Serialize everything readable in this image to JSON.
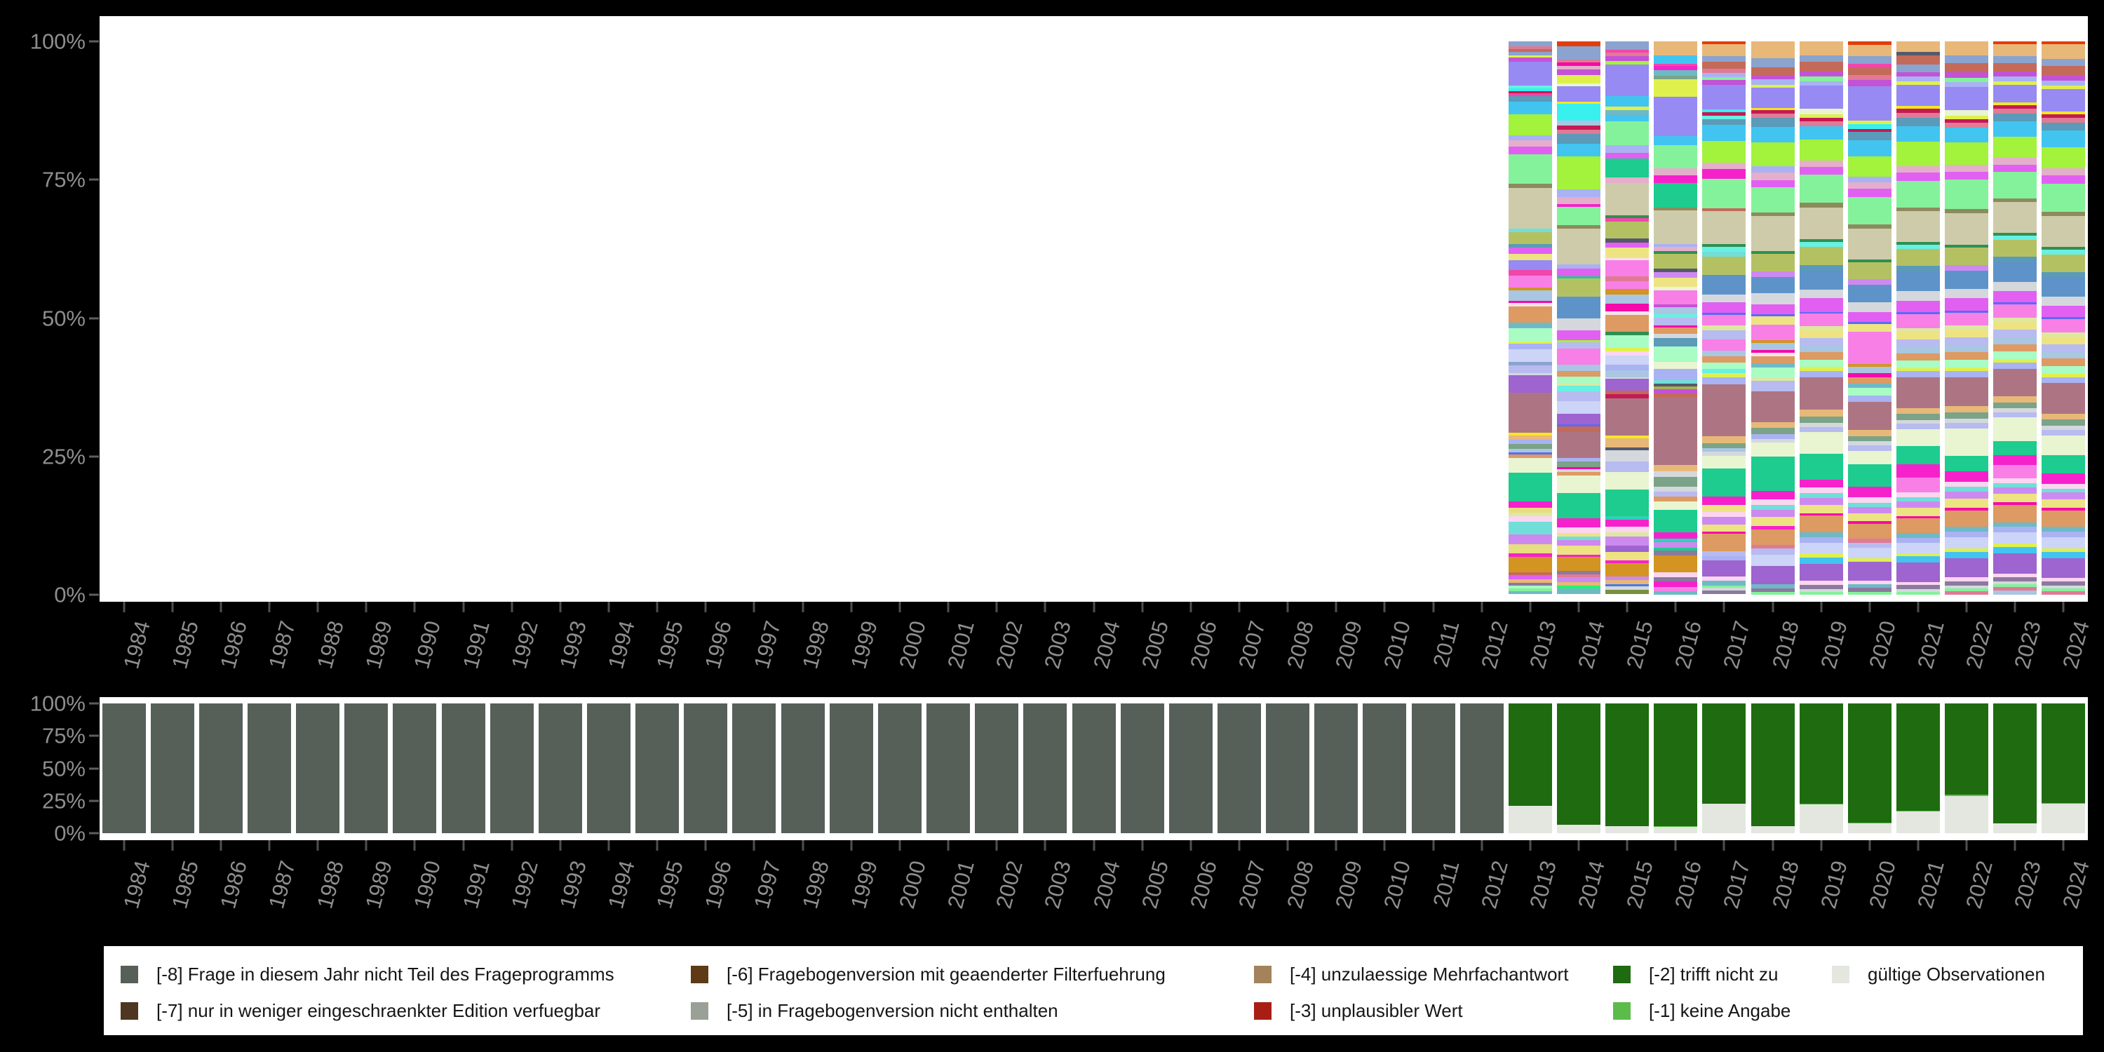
{
  "colors": {
    "background": "#000000",
    "panel": "#ffffff",
    "axis_text": "#8e8e8e",
    "y_tick": "#5e5e5e",
    "x_tick": "#4f4f4f",
    "legend_text": "#161616"
  },
  "axes": {
    "y_tick_labels": [
      "100%",
      "75%",
      "50%",
      "25%",
      "0%"
    ],
    "years": [
      "1984",
      "1985",
      "1986",
      "1987",
      "1988",
      "1989",
      "1990",
      "1991",
      "1992",
      "1993",
      "1994",
      "1995",
      "1996",
      "1997",
      "1998",
      "1999",
      "2000",
      "2001",
      "2002",
      "2003",
      "2004",
      "2005",
      "2006",
      "2007",
      "2008",
      "2009",
      "2010",
      "2011",
      "2012",
      "2013",
      "2014",
      "2015",
      "2016",
      "2017",
      "2018",
      "2019",
      "2020",
      "2021",
      "2022",
      "2023",
      "2024"
    ]
  },
  "legend": {
    "items": [
      {
        "code": "-8",
        "label": "[-8] Frage in diesem Jahr nicht Teil des Frageprogramms",
        "color": "#566058"
      },
      {
        "code": "-7",
        "label": "[-7] nur in weniger eingeschraenkter Edition verfuegbar",
        "color": "#4e3620"
      },
      {
        "code": "-6",
        "label": "[-6] Fragebogenversion mit geaenderter Filterfuehrung",
        "color": "#5e3a17"
      },
      {
        "code": "-5",
        "label": "[-5] in Fragebogenversion nicht enthalten",
        "color": "#9aa096"
      },
      {
        "code": "-4",
        "label": "[-4] unzulaessige Mehrfachantwort",
        "color": "#a3825c"
      },
      {
        "code": "-3",
        "label": "[-3] unplausibler Wert",
        "color": "#a81e15"
      },
      {
        "code": "-2",
        "label": "[-2] trifft nicht zu",
        "color": "#1e6b10"
      },
      {
        "code": "-1",
        "label": "[-1] keine Angabe",
        "color": "#5cbc4a"
      },
      {
        "code": "valid",
        "label": "gültige Observationen",
        "color": "#e3e7df"
      }
    ]
  },
  "chart_data": [
    {
      "type": "bar",
      "stacked": true,
      "title": "",
      "xlabel": "",
      "ylabel": "",
      "ytick_labels": [
        "100%",
        "75%",
        "50%",
        "25%",
        "0%"
      ],
      "ylim": [
        0,
        100
      ],
      "grid": false,
      "note": "Top panel: per-category stacked distribution (many random-colored categories), bars exist only for 2013-2024; 1984-2012 empty.",
      "palette": [
        "#8aa3cf",
        "#e33d0a",
        "#c46a5a",
        "#f246aa",
        "#c352d6",
        "#dff04d",
        "#978af2",
        "#38f0ee",
        "#c41a55",
        "#e07a95",
        "#5b9ab8",
        "#42c4f0",
        "#a3f23b",
        "#a9b2f2",
        "#e5aecb",
        "#e160f2",
        "#84f29a",
        "#8d8a5e",
        "#cecbaa",
        "#68f0e2",
        "#b4c163",
        "#5e93c9",
        "#ede383",
        "#f87fe6",
        "#d49422",
        "#a9c6e2",
        "#f50aaa",
        "#f8e3e8",
        "#dd9a63",
        "#6fb9c6",
        "#a8fcc4",
        "#b7bbef",
        "#ccd4f7",
        "#9e64cf",
        "#ad7583",
        "#1dcc8e",
        "#e8f5d0",
        "#f522cc",
        "#f5e625",
        "#7aa387",
        "#d4d8dd",
        "#55596b",
        "#2f8f52",
        "#5a6af5",
        "#e8b878",
        "#72ded8",
        "#cc8af0",
        "#fcd5f0",
        "#dde8a0",
        "#2ad4b5",
        "#e8dd80",
        "#8a7a9e",
        "#22f56a",
        "#a8b052",
        "#4a78e8",
        "#7a8f3d"
      ],
      "bars_pct_by_year": {
        "2013": "0:.8 9:.5 2:.5 0:.6 5:.4 4:.7 6:4.2 19:.5 7:.5 8:.4 3:.5 10:1 11:2.2 12:3.6 13:.9 14:1.1 15:1.3 16:5.2 17:.7 18:7.2 45:.5 20:2.2 10:.5 15:1.2 22:1.1 6:1.7 3:1 23:2.1 24:.4 25:1.9 26:.4 27:.5 28:2.9 29:.9 30:2.4 5:.4 13:.9 32:2.3 0:.5 31:1.4 40:.4 33:3 34:7 38:.5 44:.7 13:.8 39:.8 25:.7 43:.3 28:.6 36:2.6 35:5 37:1.2 50:.8 48:.6 47:1 45:2.2 46:1.7 50:1.6 37:.7 24:2.6 2:.5 15:.8 44:.6 51:.5 30:.4 16:.5 29:.6",
        "2014": "1:.9 0:2.3 9:.5 26:.6 14:.7 4:1 5:1.5 36:.4 6:2.8 38:.4 7:2.9 25:.9 8:.7 9:.8 10:1.7 11:2.3 12:5.8 13:1.4 14:1.2 37:.5 16:3.2 17:.6 18:6.4 13:.7 15:1.4 35:.3 20:3.3 21:3.8 40:2.1 15:1.8 12:.4 31:1.1 23:1.5 23:1.3 25:1.2 28:.9 30:1.2 48:.5 19:1 31:1.7 32:2.2 33:1.9 43:.4 2:1 34:4.6 13:.6 39:1 26:.3 40:.5 28:.7 36:3.1 35:4.4 37:1.6 47:1 22:.7 45:.6 46:1 22:1.6 37:.4 24:2.4 51:.6 9:.6 46:.8 44:.7 52:.5 29:1",
        "2015": "0:1.4 3:.5 9:.6 4:.9 12:.6 6:5.4 11:1.9 5:.5 29:.9 11:1.1 16:4.1 13:1.3 15:1 35:3.2 14:1 18:5.6 42:.5 3:.6 20:2.9 41:.7 15:.9 22:1.7 27:.4 23:2.8 9:.8 23:1.4 24:1 25:1.5 26:1.3 27:.6 28:3 42:.6 30:2.1 5:.6 47:.8 32:1.5 13:1 25:1.2 40:.3 33:2 2:.6 8:.8 34:6.3 38:.5 44:1.6 41:.5 40:1.9 31:1.8 36:3 35:4.6 49:.7 37:1.2 47:.9 48:.7 46:1.6 33:1.1 22:1.5 37:.5 24:2.3 46:.6 44:.7 54:.4 40:.5 55:.8",
        "2016": "44:2.4 11:1.5 3:.4 37:.7 29:1 39:.6 5:3 6:6.8 11:1.6 16:3.9 14:1.2 37:1.4 35:4.2 17:.5 18:5.8 13:.5 14:.8 42:.4 20:2.6 41:.6 46:.9 22:1.6 36:.6 23:2.4 4:.6 25:1.1 19:.7 31:1.3 26:.4 28:1 40:.8 10:1.4 30:2.7 36:1.2 13:1.9 45:.7 41:.4 53:.5 4:.8 2:.7 34:11.6 44:1.1 40:1 39:1.7 40:.8 31:.9 28:.8 36:1.5 35:3.8 37:1.1 49:.6 46:1 35:.5 51:.9 24:2.9 47:.8 51:.7 37:1 23:.8 29:.5",
        "2017": "1:.4 44:1.9 0:.9 2:1.1 9:.7 13:.6 16:.5 4:.7 6:3.9 7:.4 8:.6 19:.5 10:.9 11:2.6 12:3.4 14:1 37:1.5 16:4.6 2:.5 18:5.2 42:.4 19:.8 45:.7 20:2.9 21:3.1 40:1.2 15:1.7 43:.3 23:1.6 48:.8 31:1.4 23:1.8 25:.9 28:1 30:1 19:.6 5:.7 13:1.1 34:8.2 44:1 39:.8 25:.6 40:.6 36:2 35:4.4 37:1.3 22:1.2 47:.7 46:1.2 22:1.1 26:.4 28:2.7 31:.8 13:.7 33:2.5 47:.6 29:.8 16:.4 40:.4 51:.6",
        "2018": "44:2.6 0:1.4 2:1.3 4:.6 13:.8 5:.5 6:3.1 38:.4 8:.5 9:.7 10:1.4 11:2.4 12:3.7 13:1 14:1.1 15:1.1 16:3.9 17:.6 18:5.4 42:.5 20:2.7 46:.8 21:2.6 40:1.7 15:1.5 43:.4 22:1.3 23:2.3 24:.5 25:1.1 26:.4 27:.5 28:1.1 29:.7 30:1.5 48:.6 31:1.6 34:4.8 44:.9 39:.9 13:.8 40:.5 36:2.2 35:5.3 37:1.4 47:.8 45:.8 46:1.1 22:1.4 37:.5 28:2.4 9:.6 31:.9 32:1.8 33:2.8 29:.7 51:.5 16:.4",
        "2019": "44:2.2 0:1 2:1.5 4:.8 16:.7 13:.7 6:3.6 36:.9 5:.5 8:.6 9:.7 11:2.1 12:3.3 14:1 15:1.2 16:4.4 17:.7 18:5 42:.4 19:.8 20:2.8 10:.9 21:2.9 40:1.3 15:2.2 43:.3 23:1.9 48:.7 22:1.2 31:1.2 25:1 28:1.2 30:1.1 5:.6 13:1 34:5.1 44:1 39:1 40:.7 31:.8 36:3.3 35:4.1 37:1.2 47:.9 45:.7 46:1.1 22:1.3 26:.4 28:2.6 29:.8 13:.8 32:1.7 5:.6 11:1 33:2.7 47:.6 51:.7 40:.4 16:.4",
        "2020": "1:.5 44:1.8 0:1.2 3:.5 2:1.2 9:.8 4:.9 6:5.3 5:.6 7:.7 8:.5 10:1.3 11:2.5 12:3.1 13:.9 14:1 15:1.3 16:4.2 17:.6 18:4.8 42:.4 20:2.6 46:.9 21:2.7 40:1.5 15:1.6 43:.3 22:1.2 23:2.7 23:2.3 24:.4 25:1 26:.6 28:1 29:.7 30:1.2 13:.9 34:4.4 44:.9 39:.8 40:.6 31:.9 36:2.1 35:3.4 37:1.7 47:.8 45:.7 46:1 22:1.2 26:.4 28:2.3 9:.6 31:.8 32:1.6 5:.5 33:3 47:.5 29:.6 51:.6 16:.4",
        "2021": "44:1.6 41:.5 2:1.4 0:1.1 4:.7 13:.7 5:.5 6:3.2 38:.4 8:.6 9:.8 10:1.2 11:2.4 12:3.6 14:1 15:1.2 16:4 17:.6 18:4.6 42:.4 19:.7 20:2.5 10:.8 21:3 40:1.4 15:1.7 43:.3 23:2.1 48:.6 22:1.1 31:1.1 25:1 28:1.1 30:1.1 5:.5 13:.9 34:4.6 44:.9 39:.9 40:.6 31:.8 36:2.5 35:2.8 37:2 23:2.2 47:.7 45:.6 46:1 22:1.2 26:.4 28:2.2 29:.7 13:.8 32:1.5 5:.5 11:.9 33:2.9 47:.5 51:.6 40:.4 16:.4",
        "2022": "44:2 0:1.2 2:1.3 4:.8 16:.6 13:.7 6:3.4 36:.8 5:.5 8:.5 9:.7 11:2.2 12:3.2 14:1 15:1.2 16:4.2 17:.6 18:4.6 42:.4 20:2.6 46:.8 21:2.6 40:1.4 15:1.8 43:.3 23:1.8 48:.6 22:1.2 31:1.1 25:1 28:1.1 30:1.2 5:.5 13:.9 34:4.2 44:.9 39:.9 40:.6 31:.8 36:4 35:2.2 37:1.5 47:.8 45:.7 46:1 22:1.3 26:.4 28:2.4 29:.7 13:.8 32:1.6 5:.5 11:.9 33:2.8 47:.6 51:.6 40:.4 16:.4 9:.5",
        "2023": "1:.4 44:1.7 0:1.1 2:1.2 4:.7 13:.7 5:.5 6:2.6 38:.4 8:.5 9:.7 10:1.1 11:2.3 12:3 14:1 15:1.1 16:3.8 17:.6 18:4.4 42:.4 19:.7 20:2.4 10:.8 21:2.9 40:1.3 15:1.6 43:.3 23:2 48:.6 22:1.1 31:1.1 25:1 28:1.1 30:1.1 5:.5 13:.9 34:4 44:.9 39:.8 40:.6 31:.8 36:3.4 35:2.1 37:1.4 23:1.9 47:.7 45:.6 46:1 22:1.2 26:.4 28:2.5 29:.7 13:.8 32:1.6 5:.5 11:.9 33:3 47:.5 51:.6 40:.4 16:.4 9:.5 25:.6",
        "2024": "1:.4 44:2.1 0:1.1 2:1.3 4:.8 13:.7 5:.5 6:3.3 38:.4 8:.5 9:.7 10:1.2 11:2.4 12:3.1 14:1 15:1.2 16:4.1 17:.6 18:4.5 42:.4 19:.7 20:2.5 10:.8 21:2.8 40:1.3 15:1.7 43:.3 23:1.9 48:.6 22:1.1 31:1.1 25:1 28:1.1 30:1.1 5:.5 13:.9 34:4.4 44:.9 39:.9 40:.6 31:.8 36:2.9 35:2.6 37:1.5 47:.7 45:.6 46:1 22:1.2 26:.4 28:2.4 29:.7 13:.8 32:1.6 5:.5 11:.9 33:2.9 47:.5 51:.6 40:.4 16:.4 9:.5"
      }
    },
    {
      "type": "bar",
      "stacked": true,
      "title": "",
      "xlabel": "",
      "ylabel": "",
      "ytick_labels": [
        "100%",
        "75%",
        "50%",
        "25%",
        "0%"
      ],
      "ylim": [
        0,
        100
      ],
      "grid": false,
      "note": "Bottom panel: missing-code summary per year. Segments listed top-to-bottom as [legend_code, percent].",
      "bars": {
        "1984": [
          [
            "-8",
            100
          ]
        ],
        "1985": [
          [
            "-8",
            100
          ]
        ],
        "1986": [
          [
            "-8",
            100
          ]
        ],
        "1987": [
          [
            "-8",
            100
          ]
        ],
        "1988": [
          [
            "-8",
            100
          ]
        ],
        "1989": [
          [
            "-8",
            100
          ]
        ],
        "1990": [
          [
            "-8",
            100
          ]
        ],
        "1991": [
          [
            "-8",
            100
          ]
        ],
        "1992": [
          [
            "-8",
            100
          ]
        ],
        "1993": [
          [
            "-8",
            100
          ]
        ],
        "1994": [
          [
            "-8",
            100
          ]
        ],
        "1995": [
          [
            "-8",
            100
          ]
        ],
        "1996": [
          [
            "-8",
            100
          ]
        ],
        "1997": [
          [
            "-8",
            100
          ]
        ],
        "1998": [
          [
            "-8",
            100
          ]
        ],
        "1999": [
          [
            "-8",
            100
          ]
        ],
        "2000": [
          [
            "-8",
            100
          ]
        ],
        "2001": [
          [
            "-8",
            100
          ]
        ],
        "2002": [
          [
            "-8",
            100
          ]
        ],
        "2003": [
          [
            "-8",
            100
          ]
        ],
        "2004": [
          [
            "-8",
            100
          ]
        ],
        "2005": [
          [
            "-8",
            100
          ]
        ],
        "2006": [
          [
            "-8",
            100
          ]
        ],
        "2007": [
          [
            "-8",
            100
          ]
        ],
        "2008": [
          [
            "-8",
            100
          ]
        ],
        "2009": [
          [
            "-8",
            100
          ]
        ],
        "2010": [
          [
            "-8",
            100
          ]
        ],
        "2011": [
          [
            "-8",
            100
          ]
        ],
        "2012": [
          [
            "-8",
            100
          ]
        ],
        "2013": [
          [
            "-2",
            79.1
          ],
          [
            "valid",
            20.9
          ]
        ],
        "2014": [
          [
            "-2",
            93.4
          ],
          [
            "valid",
            6.6
          ]
        ],
        "2015": [
          [
            "-2",
            94.8
          ],
          [
            "valid",
            5.2
          ]
        ],
        "2016": [
          [
            "-2",
            94.6
          ],
          [
            "-1",
            0.7
          ],
          [
            "valid",
            4.7
          ]
        ],
        "2017": [
          [
            "-2",
            77.4
          ],
          [
            "valid",
            22.6
          ]
        ],
        "2018": [
          [
            "-2",
            94.4
          ],
          [
            "valid",
            5.6
          ]
        ],
        "2019": [
          [
            "-2",
            77.2
          ],
          [
            "-1",
            0.8
          ],
          [
            "valid",
            22.0
          ]
        ],
        "2020": [
          [
            "-2",
            92.1
          ],
          [
            "-1",
            0.6
          ],
          [
            "valid",
            7.3
          ]
        ],
        "2021": [
          [
            "-2",
            82.5
          ],
          [
            "-1",
            1.0
          ],
          [
            "valid",
            16.5
          ]
        ],
        "2022": [
          [
            "-2",
            70.2
          ],
          [
            "-1",
            1.1
          ],
          [
            "valid",
            28.7
          ]
        ],
        "2023": [
          [
            "-2",
            92.5
          ],
          [
            "valid",
            7.5
          ]
        ],
        "2024": [
          [
            "-2",
            76.6
          ],
          [
            "-1",
            0.8
          ],
          [
            "valid",
            22.6
          ]
        ]
      }
    }
  ]
}
